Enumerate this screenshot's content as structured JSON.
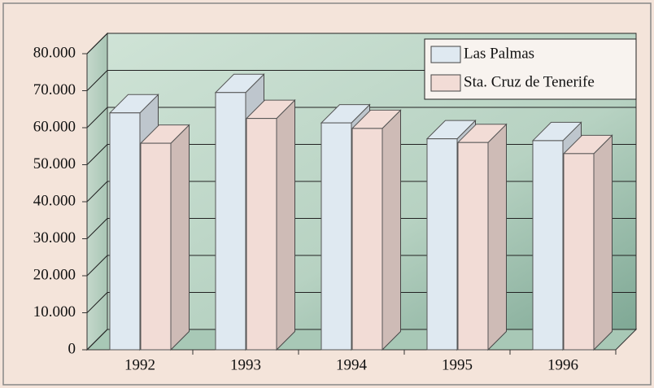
{
  "chart_data": {
    "type": "bar3d",
    "categories": [
      "1992",
      "1993",
      "1994",
      "1995",
      "1996"
    ],
    "series": [
      {
        "name": "Las Palmas",
        "color": "#dfe9f1",
        "values": [
          64000,
          69500,
          61300,
          57000,
          56500
        ]
      },
      {
        "name": "Sta. Cruz de Tenerife",
        "color": "#f2dcd6",
        "values": [
          55800,
          62500,
          59800,
          56000,
          53000
        ]
      }
    ],
    "ylim": [
      0,
      80000
    ],
    "yticks": [
      0,
      {
        "value": 10000,
        "label": "10.000"
      },
      {
        "value": 20000,
        "label": "20.000"
      },
      {
        "value": 30000,
        "label": "30.000"
      },
      {
        "value": 40000,
        "label": "40.000"
      },
      {
        "value": 50000,
        "label": "50.000"
      },
      {
        "value": 60000,
        "label": "60.000"
      },
      {
        "value": 70000,
        "label": "70.000"
      },
      {
        "value": 80000,
        "label": "80.000"
      }
    ],
    "grid": true,
    "legend": "upper right"
  }
}
